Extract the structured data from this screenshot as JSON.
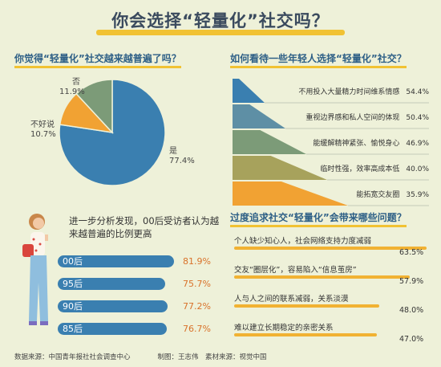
{
  "title": "你会选择“轻量化”社交吗？",
  "footer": "数据来源：中国青年报社社会调查中心　　　　制图：王志伟　素材来源：视觉中国",
  "colors": {
    "blue": "#3a7fb0",
    "orange": "#f1a233",
    "green": "#7c9b78",
    "yellow": "#f1c233"
  },
  "chart_data": [
    {
      "type": "pie",
      "title": "你觉得“轻量化”社交越来越普遍了吗？",
      "slices": [
        {
          "label": "是",
          "value": 77.4,
          "display": "77.4%",
          "color": "#3a7fb0"
        },
        {
          "label": "不好说",
          "value": 10.7,
          "display": "10.7%",
          "color": "#f1a233"
        },
        {
          "label": "否",
          "value": 11.9,
          "display": "11.9%",
          "color": "#7c9b78"
        }
      ]
    },
    {
      "type": "bar",
      "title": "如何看待一些年轻人选择“轻量化”社交？",
      "categories": [
        "不用投入大量精力时间维系情感",
        "重视边界感和私人空间的体现",
        "能缓解精神紧张、愉悦身心",
        "临时性强，效率高成本低",
        "能拓宽交友圈"
      ],
      "values": [
        54.4,
        50.4,
        46.9,
        40.0,
        35.9
      ],
      "display": [
        "54.4%",
        "50.4%",
        "46.9%",
        "40.0%",
        "35.9%"
      ],
      "colors": [
        "#3a7fb0",
        "#5e8fa5",
        "#7c9b78",
        "#a7a25c",
        "#f1a233"
      ]
    },
    {
      "type": "bar",
      "title": "进一步分析发现，00后受访者认为越来越普遍的比例更高",
      "categories": [
        "00后",
        "95后",
        "90后",
        "85后"
      ],
      "values": [
        81.9,
        75.7,
        77.2,
        76.7
      ],
      "display": [
        "81.9%",
        "75.7%",
        "77.2%",
        "76.7%"
      ]
    },
    {
      "type": "bar",
      "title": "过度追求社交“轻量化”会带来哪些问题？",
      "categories": [
        "个人缺少知心人，社会网络支持力度减弱",
        "交友“圈层化”，容易陷入“信息茧房”",
        "人与人之间的联系减弱，关系淡漠",
        "难以建立长期稳定的亲密关系"
      ],
      "values": [
        63.5,
        57.9,
        48.0,
        47.0
      ],
      "display": [
        "63.5%",
        "57.9%",
        "48.0%",
        "47.0%"
      ]
    }
  ]
}
